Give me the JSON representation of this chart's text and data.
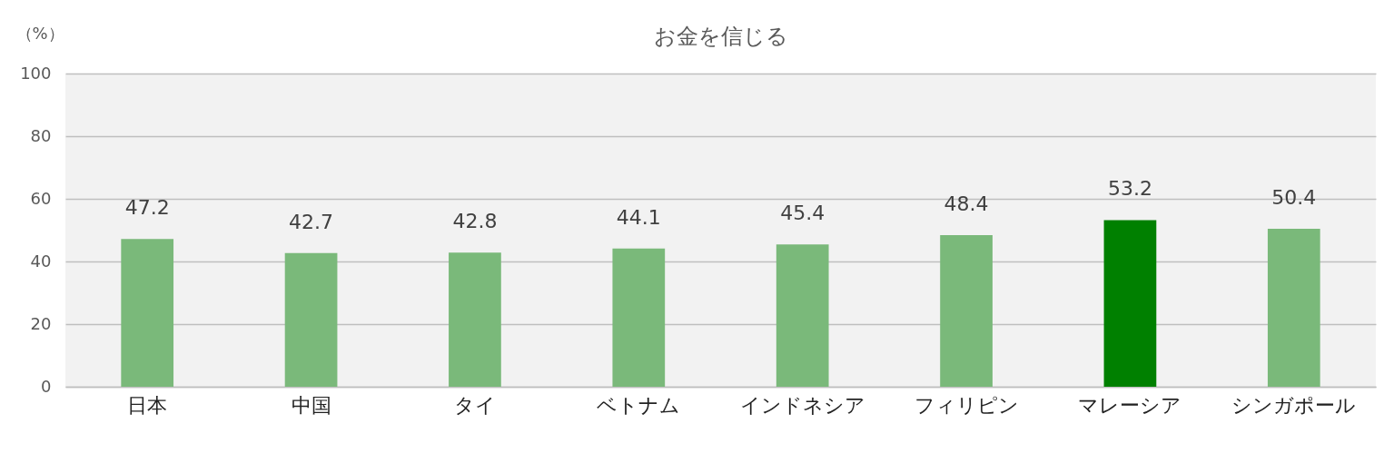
{
  "chart_data": {
    "type": "bar",
    "title": "お金を信じる",
    "ylabel": "（%）",
    "categories": [
      "日本",
      "中国",
      "タイ",
      "ベトナム",
      "インドネシア",
      "フィリピン",
      "マレーシア",
      "シンガポール"
    ],
    "values": [
      47.2,
      42.7,
      42.8,
      44.1,
      45.4,
      48.4,
      53.2,
      50.4
    ],
    "colors": [
      "#7ab97a",
      "#7ab97a",
      "#7ab97a",
      "#7ab97a",
      "#7ab97a",
      "#7ab97a",
      "#008000",
      "#7ab97a"
    ],
    "ylim": [
      0,
      100
    ],
    "yticks": [
      0,
      20,
      40,
      60,
      80,
      100
    ],
    "grid": "y",
    "data_labels": true
  }
}
